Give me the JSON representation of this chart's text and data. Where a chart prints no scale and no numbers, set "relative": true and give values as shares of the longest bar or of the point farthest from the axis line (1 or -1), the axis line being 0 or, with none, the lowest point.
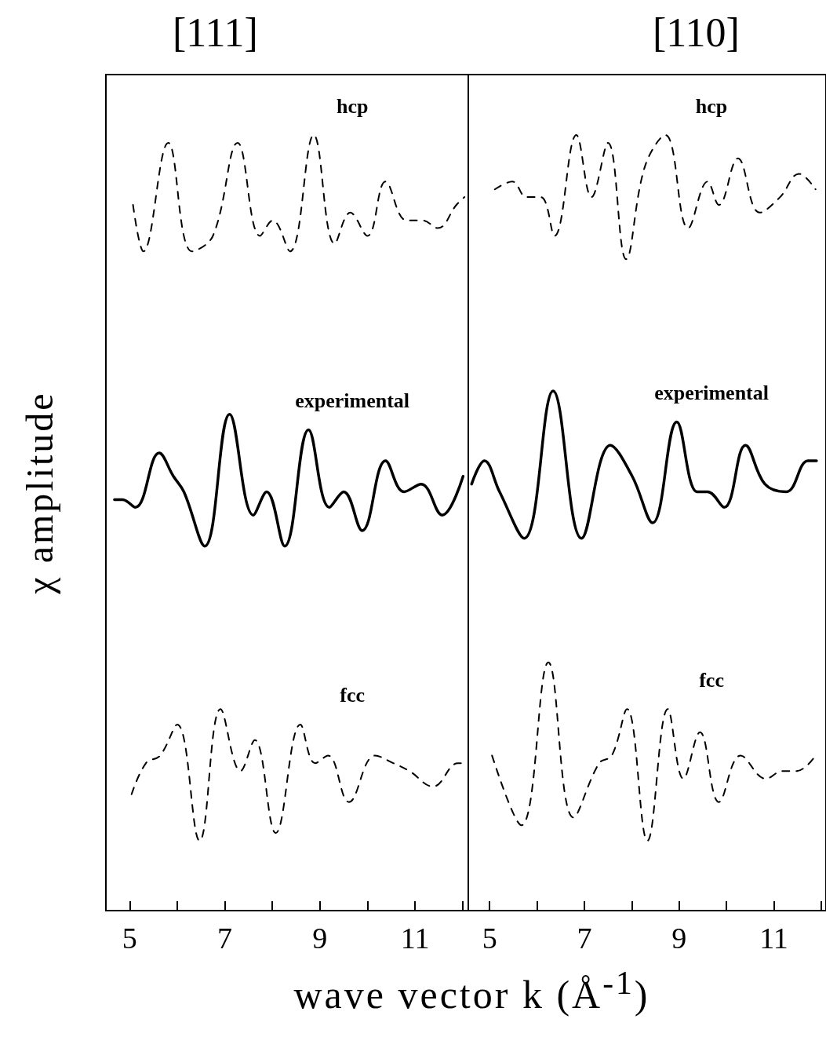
{
  "chart_data": [
    {
      "type": "line",
      "title": "[111]",
      "xlabel": "wave vector  k  (Å$^{-1}$)",
      "ylabel": "χ   amplitude",
      "relative": true,
      "marker": "none",
      "legend": false,
      "grid": false,
      "xlim": [
        4.5,
        12.12
      ],
      "xticks": [
        5,
        {
          "value": 6,
          "label": null
        },
        7,
        {
          "value": 8,
          "label": null
        },
        9,
        {
          "value": 10,
          "label": null
        },
        11,
        {
          "value": 12,
          "label": null
        }
      ],
      "series": [
        {
          "name": "hcp",
          "color": "#000000",
          "line_style": "dashed",
          "x": [
            5.07,
            5.29,
            5.81,
            6.31,
            6.75,
            7.27,
            7.74,
            8.01,
            8.37,
            8.87,
            9.31,
            9.64,
            10.0,
            10.38,
            10.82,
            11.15,
            11.48,
            11.87,
            12.04
          ],
          "values": [
            0.91,
            0.85,
            0.99,
            0.85,
            0.87,
            0.99,
            0.87,
            0.89,
            0.85,
            1.0,
            0.86,
            0.9,
            0.87,
            0.94,
            0.89,
            0.89,
            0.88,
            0.91,
            0.92
          ]
        },
        {
          "name": "experimental",
          "color": "#000000",
          "line_style": "solid",
          "x": [
            4.68,
            4.85,
            5.12,
            5.62,
            5.92,
            6.14,
            6.58,
            7.1,
            7.6,
            7.88,
            8.26,
            8.76,
            9.2,
            9.5,
            9.89,
            10.38,
            10.77,
            11.13,
            11.57,
            12.01
          ],
          "values": [
            0.53,
            0.53,
            0.52,
            0.59,
            0.56,
            0.54,
            0.47,
            0.64,
            0.51,
            0.54,
            0.47,
            0.62,
            0.52,
            0.54,
            0.49,
            0.58,
            0.54,
            0.55,
            0.51,
            0.56
          ]
        },
        {
          "name": "fcc",
          "color": "#000000",
          "line_style": "dashed",
          "x": [
            5.04,
            5.34,
            5.64,
            6.0,
            6.47,
            6.91,
            7.33,
            7.63,
            8.07,
            8.59,
            8.9,
            9.17,
            9.61,
            10.16,
            10.55,
            10.88,
            11.38,
            11.9,
            12.06
          ],
          "values": [
            0.15,
            0.19,
            0.2,
            0.24,
            0.09,
            0.26,
            0.18,
            0.22,
            0.1,
            0.24,
            0.19,
            0.2,
            0.14,
            0.2,
            0.19,
            0.18,
            0.16,
            0.19,
            0.19
          ]
        }
      ]
    },
    {
      "type": "line",
      "title": "[110]",
      "relative": true,
      "marker": "none",
      "legend": false,
      "grid": false,
      "xlim": [
        4.55,
        12.1
      ],
      "xticks": [
        5,
        {
          "value": 6,
          "label": null
        },
        7,
        {
          "value": 8,
          "label": null
        },
        9,
        {
          "value": 10,
          "label": null
        },
        11,
        {
          "value": 12,
          "label": null
        }
      ],
      "series": [
        {
          "name": "hcp",
          "color": "#000000",
          "line_style": "dashed",
          "x": [
            5.11,
            5.48,
            5.78,
            6.08,
            6.37,
            6.83,
            7.15,
            7.5,
            7.88,
            8.28,
            8.71,
            9.19,
            9.6,
            9.84,
            10.24,
            10.7,
            11.13,
            11.53,
            11.88
          ],
          "values": [
            0.93,
            0.94,
            0.92,
            0.92,
            0.87,
            1.0,
            0.92,
            0.99,
            0.84,
            0.96,
            1.0,
            0.88,
            0.94,
            0.91,
            0.97,
            0.9,
            0.92,
            0.95,
            0.93
          ]
        },
        {
          "name": "experimental",
          "color": "#000000",
          "line_style": "solid",
          "x": [
            4.62,
            4.89,
            5.21,
            5.73,
            6.34,
            6.94,
            7.55,
            8.01,
            8.44,
            8.95,
            9.38,
            9.6,
            9.95,
            10.4,
            10.81,
            11.26,
            11.72,
            11.9
          ],
          "values": [
            0.55,
            0.58,
            0.54,
            0.48,
            0.67,
            0.48,
            0.6,
            0.56,
            0.5,
            0.63,
            0.54,
            0.54,
            0.52,
            0.6,
            0.55,
            0.54,
            0.58,
            0.58
          ]
        },
        {
          "name": "fcc",
          "color": "#000000",
          "line_style": "dashed",
          "x": [
            5.05,
            5.67,
            6.24,
            6.77,
            7.31,
            7.58,
            7.9,
            8.33,
            8.76,
            9.09,
            9.44,
            9.84,
            10.3,
            10.83,
            11.18,
            11.48,
            11.88
          ],
          "values": [
            0.2,
            0.11,
            0.32,
            0.12,
            0.19,
            0.2,
            0.26,
            0.09,
            0.26,
            0.17,
            0.23,
            0.14,
            0.2,
            0.17,
            0.18,
            0.18,
            0.2
          ]
        }
      ]
    }
  ]
}
